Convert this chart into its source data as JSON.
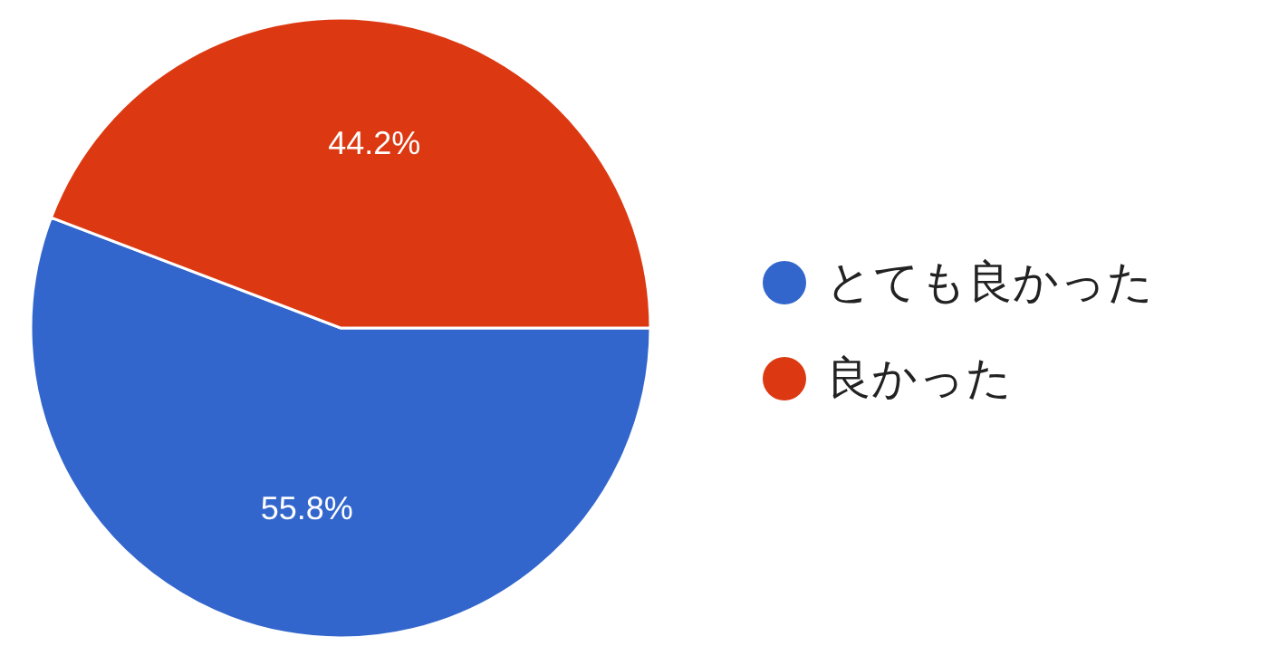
{
  "chart_data": {
    "type": "pie",
    "categories": [
      "とても良かった",
      "良かった"
    ],
    "values": [
      55.8,
      44.2
    ],
    "value_labels": [
      "55.8%",
      "44.2%"
    ],
    "colors": [
      "#3366cc",
      "#dc3912"
    ],
    "legend": "right"
  }
}
